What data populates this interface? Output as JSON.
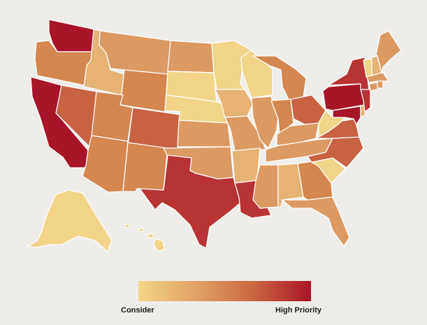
{
  "legend": {
    "low_label": "Consider",
    "high_label": "High Priority",
    "colors": [
      "#f2d585",
      "#e2a266",
      "#c9673f",
      "#a81428"
    ]
  },
  "palette": {
    "c1": "#f1d488",
    "c2": "#e6b374",
    "c3": "#dc9a62",
    "c4": "#d4874f",
    "c5": "#c86342",
    "c6": "#b83333",
    "c7": "#a81428",
    "background": "#efede9",
    "border": "#ffffff"
  },
  "states": [
    {
      "name": "WA",
      "level": "c7"
    },
    {
      "name": "OR",
      "level": "c4"
    },
    {
      "name": "CA",
      "level": "c7"
    },
    {
      "name": "ID",
      "level": "c2"
    },
    {
      "name": "NV",
      "level": "c5"
    },
    {
      "name": "MT",
      "level": "c3"
    },
    {
      "name": "WY",
      "level": "c4"
    },
    {
      "name": "UT",
      "level": "c4"
    },
    {
      "name": "AZ",
      "level": "c4"
    },
    {
      "name": "CO",
      "level": "c5"
    },
    {
      "name": "NM",
      "level": "c4"
    },
    {
      "name": "ND",
      "level": "c3"
    },
    {
      "name": "SD",
      "level": "c1"
    },
    {
      "name": "NE",
      "level": "c1"
    },
    {
      "name": "KS",
      "level": "c3"
    },
    {
      "name": "OK",
      "level": "c3"
    },
    {
      "name": "TX",
      "level": "c6"
    },
    {
      "name": "MN",
      "level": "c1"
    },
    {
      "name": "IA",
      "level": "c2"
    },
    {
      "name": "MO",
      "level": "c3"
    },
    {
      "name": "AR",
      "level": "c2"
    },
    {
      "name": "LA",
      "level": "c6"
    },
    {
      "name": "WI",
      "level": "c1"
    },
    {
      "name": "IL",
      "level": "c3"
    },
    {
      "name": "MI",
      "level": "c4"
    },
    {
      "name": "IN",
      "level": "c4"
    },
    {
      "name": "OH",
      "level": "c5"
    },
    {
      "name": "KY",
      "level": "c3"
    },
    {
      "name": "TN",
      "level": "c3"
    },
    {
      "name": "MS",
      "level": "c3"
    },
    {
      "name": "AL",
      "level": "c2"
    },
    {
      "name": "GA",
      "level": "c4"
    },
    {
      "name": "FL",
      "level": "c3"
    },
    {
      "name": "SC",
      "level": "c1"
    },
    {
      "name": "NC",
      "level": "c5"
    },
    {
      "name": "VA",
      "level": "c5"
    },
    {
      "name": "WV",
      "level": "c1"
    },
    {
      "name": "MD",
      "level": "c7"
    },
    {
      "name": "DE",
      "level": "c2"
    },
    {
      "name": "PA",
      "level": "c7"
    },
    {
      "name": "NJ",
      "level": "c6"
    },
    {
      "name": "NY",
      "level": "c6"
    },
    {
      "name": "CT",
      "level": "c3"
    },
    {
      "name": "RI",
      "level": "c3"
    },
    {
      "name": "MA",
      "level": "c3"
    },
    {
      "name": "VT",
      "level": "c1"
    },
    {
      "name": "NH",
      "level": "c2"
    },
    {
      "name": "ME",
      "level": "c3"
    },
    {
      "name": "AK",
      "level": "c1"
    },
    {
      "name": "HI",
      "level": "c1"
    }
  ]
}
